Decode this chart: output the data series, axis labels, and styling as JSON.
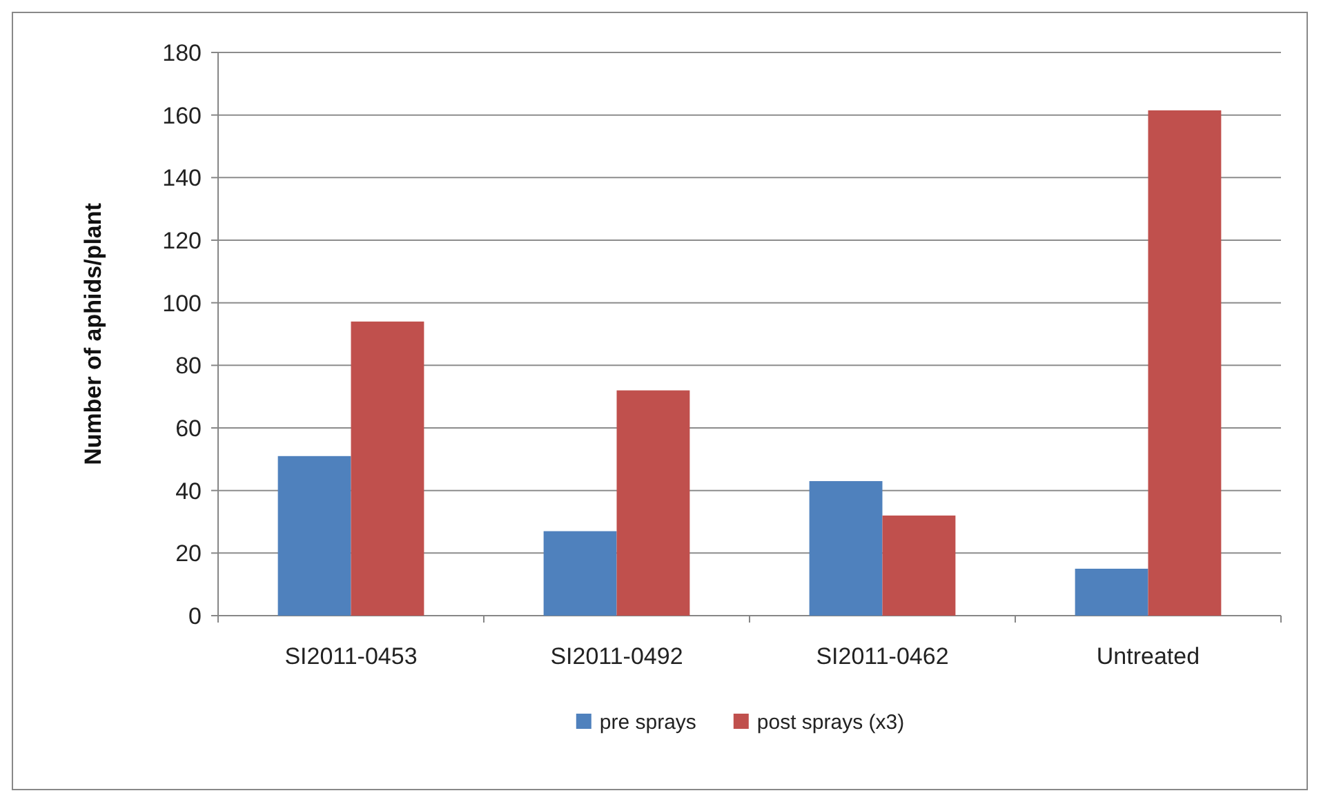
{
  "chart_data": {
    "type": "bar",
    "ylabel": "Number of aphids/plant",
    "categories": [
      "SI2011-0453",
      "SI2011-0492",
      "SI2011-0462",
      "Untreated"
    ],
    "series": [
      {
        "name": "pre sprays",
        "color": "#4f81bd",
        "values": [
          51,
          27,
          43,
          15
        ]
      },
      {
        "name": "post sprays (x3)",
        "color": "#c0504d",
        "values": [
          94,
          72,
          32,
          161.5
        ]
      }
    ],
    "ylim": [
      0,
      180
    ],
    "yticks": [
      0,
      20,
      40,
      60,
      80,
      100,
      120,
      140,
      160,
      180
    ],
    "grid": "y",
    "legend": "bottom"
  }
}
